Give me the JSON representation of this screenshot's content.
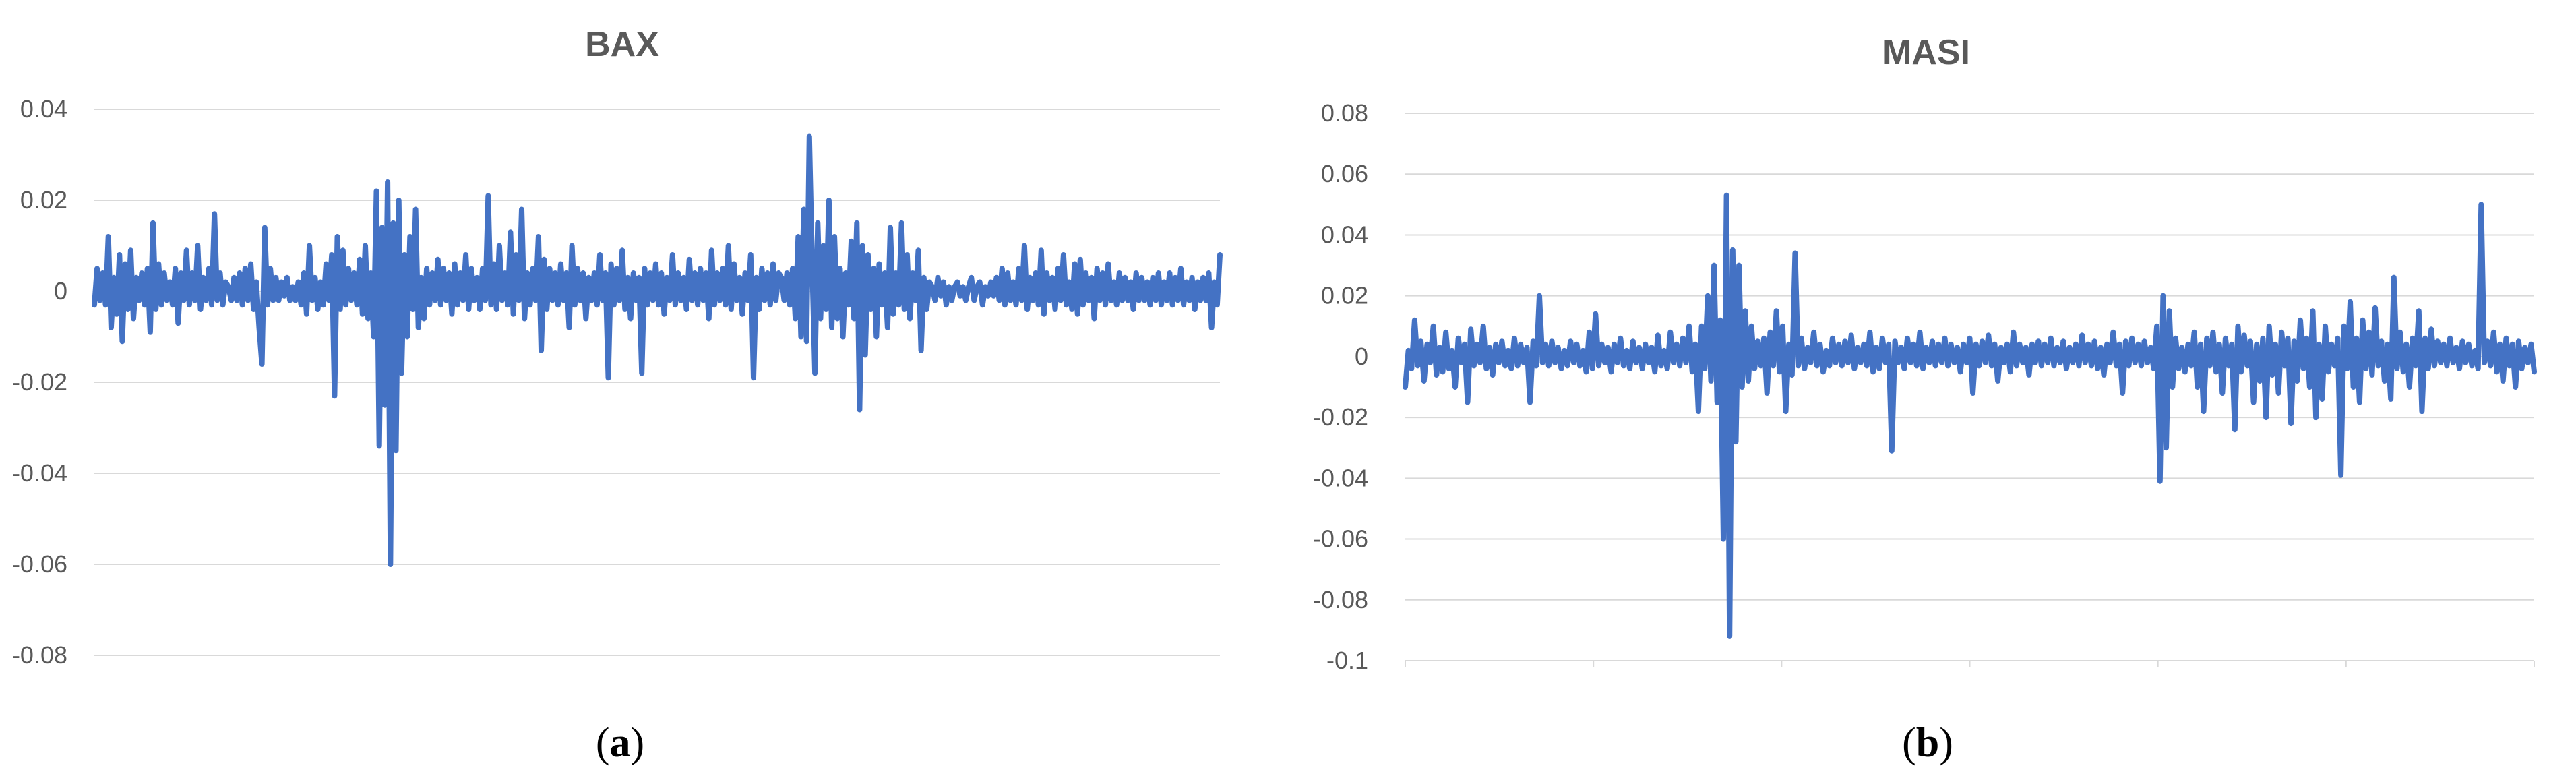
{
  "colors": {
    "series": "#4472c4",
    "grid": "#d9d9d9",
    "text": "#595959"
  },
  "chart_data": [
    {
      "type": "line",
      "title": "BAX",
      "panel_label": "a",
      "xlabel": "",
      "ylabel": "",
      "ylim": [
        -0.08,
        0.04
      ],
      "yticks": [
        0.04,
        0.02,
        0,
        -0.02,
        -0.04,
        -0.06,
        -0.08
      ],
      "ytick_labels": [
        "0.04",
        "0.02",
        "0",
        "-0.02",
        "-0.04",
        "-0.06",
        "-0.08"
      ],
      "grid": true,
      "legend": "none",
      "series": [
        {
          "values": [
            -0.003,
            0.005,
            -0.002,
            0.004,
            -0.003,
            0.012,
            -0.008,
            0.003,
            -0.005,
            0.008,
            -0.011,
            0.006,
            -0.004,
            0.009,
            -0.006,
            0.003,
            -0.002,
            0.004,
            -0.003,
            0.005,
            -0.009,
            0.015,
            -0.004,
            0.006,
            -0.003,
            0.004,
            -0.002,
            0.002,
            -0.003,
            0.005,
            -0.007,
            0.004,
            -0.002,
            0.009,
            -0.003,
            0.004,
            -0.002,
            0.01,
            -0.004,
            0.003,
            -0.002,
            0.005,
            -0.003,
            0.017,
            -0.002,
            0.004,
            -0.003,
            0.002,
            0.001,
            -0.002,
            0.003,
            -0.002,
            0.004,
            -0.003,
            0.005,
            -0.002,
            0.006,
            -0.004,
            0.002,
            -0.008,
            -0.016,
            0.014,
            -0.003,
            0.005,
            -0.002,
            0.003,
            -0.002,
            0.002,
            -0.001,
            0.003,
            -0.002,
            0.001,
            -0.002,
            0.002,
            -0.003,
            0.004,
            -0.005,
            0.01,
            -0.002,
            0.003,
            -0.004,
            0.002,
            -0.003,
            0.006,
            -0.002,
            0.008,
            -0.023,
            0.012,
            -0.004,
            0.009,
            -0.003,
            0.005,
            -0.002,
            0.004,
            -0.003,
            0.007,
            -0.005,
            0.01,
            -0.006,
            0.004,
            -0.01,
            0.022,
            -0.034,
            0.014,
            -0.025,
            0.024,
            -0.06,
            0.015,
            -0.035,
            0.02,
            -0.018,
            0.008,
            -0.01,
            0.012,
            -0.004,
            0.018,
            -0.008,
            0.003,
            -0.006,
            0.005,
            -0.003,
            0.004,
            -0.002,
            0.007,
            -0.003,
            0.005,
            -0.002,
            0.004,
            -0.005,
            0.006,
            -0.003,
            0.004,
            -0.002,
            0.008,
            -0.004,
            0.005,
            -0.002,
            0.003,
            -0.004,
            0.005,
            -0.002,
            0.021,
            -0.003,
            0.006,
            -0.004,
            0.01,
            -0.002,
            0.004,
            -0.003,
            0.013,
            -0.005,
            0.008,
            -0.002,
            0.018,
            -0.006,
            0.004,
            -0.003,
            0.005,
            -0.002,
            0.012,
            -0.013,
            0.007,
            -0.004,
            0.005,
            -0.002,
            0.004,
            -0.003,
            0.006,
            -0.002,
            0.004,
            -0.008,
            0.01,
            -0.003,
            0.005,
            -0.002,
            0.004,
            -0.006,
            0.003,
            -0.002,
            0.004,
            -0.003,
            0.008,
            -0.002,
            0.004,
            -0.019,
            0.006,
            -0.003,
            0.005,
            -0.002,
            0.009,
            -0.004,
            0.003,
            -0.006,
            0.004,
            -0.002,
            0.003,
            -0.018,
            0.005,
            -0.003,
            0.004,
            -0.002,
            0.006,
            -0.003,
            0.004,
            -0.005,
            0.003,
            -0.002,
            0.008,
            -0.003,
            0.004,
            -0.002,
            0.003,
            -0.004,
            0.007,
            -0.002,
            0.004,
            -0.003,
            0.005,
            -0.002,
            0.004,
            -0.006,
            0.009,
            -0.003,
            0.004,
            -0.002,
            0.005,
            -0.003,
            0.01,
            -0.004,
            0.006,
            -0.002,
            0.003,
            -0.005,
            0.004,
            -0.002,
            0.008,
            -0.019,
            0.003,
            -0.004,
            0.005,
            -0.002,
            0.004,
            -0.003,
            0.006,
            -0.002,
            0.004,
            0.003,
            -0.002,
            0.004,
            -0.003,
            0.005,
            -0.006,
            0.012,
            -0.01,
            0.018,
            -0.011,
            0.034,
            0.006,
            -0.018,
            0.015,
            -0.006,
            0.01,
            -0.004,
            0.02,
            -0.008,
            0.012,
            -0.006,
            0.005,
            -0.01,
            0.004,
            -0.003,
            0.011,
            -0.006,
            0.015,
            -0.026,
            0.01,
            -0.014,
            0.008,
            -0.004,
            0.005,
            -0.01,
            0.006,
            -0.003,
            0.004,
            -0.008,
            0.014,
            -0.005,
            0.004,
            -0.003,
            0.015,
            -0.004,
            0.008,
            -0.006,
            0.004,
            -0.002,
            0.009,
            -0.013,
            0.003,
            -0.004,
            0.002,
            0.001,
            -0.002,
            0.003,
            -0.001,
            0.002,
            -0.003,
            0.001,
            -0.002,
            0.001,
            0.002,
            -0.001,
            0.001,
            -0.002,
            0.001,
            0.003,
            -0.002,
            0.001,
            0.002,
            -0.003,
            0.001,
            -0.001,
            0.002,
            -0.001,
            0.003,
            -0.002,
            0.005,
            -0.003,
            0.004,
            -0.002,
            0.002,
            -0.003,
            0.005,
            -0.002,
            0.01,
            -0.004,
            0.003,
            -0.002,
            0.004,
            -0.003,
            0.009,
            -0.005,
            0.004,
            -0.002,
            0.003,
            -0.004,
            0.005,
            -0.002,
            0.008,
            -0.003,
            0.002,
            -0.004,
            0.006,
            -0.005,
            0.007,
            -0.003,
            0.004,
            -0.002,
            0.003,
            -0.006,
            0.005,
            -0.002,
            0.004,
            -0.003,
            0.006,
            -0.002,
            0.002,
            -0.003,
            0.004,
            -0.002,
            0.003,
            -0.002,
            0.002,
            -0.004,
            0.004,
            -0.002,
            0.003,
            -0.002,
            0.002,
            -0.003,
            0.003,
            -0.002,
            0.004,
            -0.003,
            0.002,
            -0.002,
            0.004,
            -0.003,
            0.003,
            -0.002,
            0.005,
            -0.003,
            0.002,
            -0.002,
            0.003,
            -0.004,
            0.002,
            -0.002,
            0.003,
            -0.002,
            0.004,
            -0.008,
            0.002,
            -0.003,
            0.008
          ]
        }
      ]
    },
    {
      "type": "line",
      "title": "MASI",
      "panel_label": "b",
      "xlabel": "",
      "ylabel": "",
      "ylim": [
        -0.1,
        0.08
      ],
      "yticks": [
        0.08,
        0.06,
        0.04,
        0.02,
        0,
        -0.02,
        -0.04,
        -0.06,
        -0.08,
        -0.1
      ],
      "ytick_labels": [
        "0.08",
        "0.06",
        "0.04",
        "0.02",
        "0",
        "-0.02",
        "-0.04",
        "-0.06",
        "-0.08",
        "-0.1"
      ],
      "grid": true,
      "legend": "none",
      "series": [
        {
          "values": [
            -0.01,
            0.002,
            -0.004,
            0.012,
            -0.003,
            0.005,
            -0.008,
            0.004,
            -0.002,
            0.01,
            -0.006,
            0.003,
            -0.005,
            0.008,
            -0.004,
            0.002,
            -0.01,
            0.006,
            -0.002,
            0.004,
            -0.015,
            0.009,
            -0.003,
            0.004,
            -0.002,
            0.01,
            -0.004,
            0.003,
            -0.006,
            0.004,
            -0.002,
            0.005,
            -0.003,
            0.002,
            -0.004,
            0.006,
            -0.003,
            0.004,
            -0.002,
            0.003,
            -0.015,
            0.005,
            -0.003,
            0.02,
            -0.002,
            0.004,
            -0.003,
            0.005,
            -0.002,
            0.003,
            -0.004,
            0.002,
            -0.003,
            0.005,
            -0.002,
            0.004,
            -0.003,
            0.002,
            -0.005,
            0.008,
            -0.004,
            0.014,
            -0.003,
            0.004,
            -0.002,
            0.003,
            -0.005,
            0.004,
            -0.002,
            0.006,
            -0.003,
            0.002,
            -0.004,
            0.005,
            -0.002,
            0.003,
            -0.004,
            0.004,
            -0.002,
            0.003,
            -0.005,
            0.007,
            -0.003,
            0.002,
            -0.004,
            0.008,
            -0.002,
            0.004,
            -0.003,
            0.006,
            -0.002,
            0.01,
            -0.005,
            0.004,
            -0.018,
            0.01,
            -0.004,
            0.02,
            -0.008,
            0.03,
            -0.015,
            0.012,
            -0.06,
            0.053,
            -0.092,
            0.035,
            -0.028,
            0.03,
            -0.01,
            0.015,
            -0.008,
            0.01,
            -0.004,
            0.005,
            -0.003,
            0.006,
            -0.012,
            0.008,
            -0.003,
            0.015,
            -0.005,
            0.01,
            -0.018,
            0.004,
            -0.006,
            0.034,
            -0.003,
            0.006,
            -0.004,
            0.003,
            -0.002,
            0.008,
            -0.003,
            0.004,
            -0.005,
            0.002,
            -0.003,
            0.006,
            -0.002,
            0.004,
            -0.003,
            0.005,
            -0.002,
            0.007,
            -0.004,
            0.003,
            -0.002,
            0.004,
            -0.003,
            0.008,
            -0.005,
            0.003,
            -0.004,
            0.006,
            -0.002,
            0.004,
            -0.031,
            0.005,
            -0.002,
            0.003,
            -0.004,
            0.006,
            -0.002,
            0.004,
            -0.003,
            0.008,
            -0.004,
            0.003,
            -0.002,
            0.005,
            -0.003,
            0.004,
            -0.002,
            0.006,
            -0.003,
            0.004,
            -0.002,
            0.003,
            -0.005,
            0.004,
            -0.002,
            0.006,
            -0.012,
            0.004,
            -0.003,
            0.005,
            -0.002,
            0.007,
            -0.003,
            0.004,
            -0.008,
            0.003,
            -0.002,
            0.004,
            -0.005,
            0.008,
            -0.003,
            0.004,
            -0.002,
            0.003,
            -0.006,
            0.004,
            -0.002,
            0.005,
            -0.003,
            0.004,
            -0.002,
            0.006,
            -0.003,
            0.003,
            -0.002,
            0.005,
            -0.004,
            0.003,
            -0.002,
            0.004,
            -0.003,
            0.007,
            -0.002,
            0.004,
            -0.003,
            0.005,
            -0.004,
            0.003,
            -0.006,
            0.004,
            -0.002,
            0.008,
            -0.003,
            0.004,
            -0.012,
            0.005,
            -0.003,
            0.006,
            -0.002,
            0.004,
            -0.003,
            0.005,
            -0.002,
            0.003,
            -0.004,
            0.01,
            -0.041,
            0.02,
            -0.03,
            0.015,
            -0.01,
            0.006,
            -0.004,
            0.003,
            -0.005,
            0.004,
            -0.003,
            0.008,
            -0.01,
            0.004,
            -0.018,
            0.006,
            -0.003,
            0.008,
            -0.005,
            0.004,
            -0.012,
            0.006,
            -0.003,
            0.004,
            -0.024,
            0.01,
            -0.005,
            0.007,
            -0.003,
            0.005,
            -0.015,
            0.004,
            -0.008,
            0.006,
            -0.02,
            0.01,
            -0.006,
            0.004,
            -0.012,
            0.008,
            -0.003,
            0.006,
            -0.022,
            0.005,
            -0.008,
            0.012,
            -0.004,
            0.006,
            -0.01,
            0.015,
            -0.02,
            0.004,
            -0.014,
            0.01,
            -0.005,
            0.004,
            -0.003,
            0.006,
            -0.039,
            0.01,
            -0.004,
            0.018,
            -0.01,
            0.006,
            -0.015,
            0.012,
            -0.004,
            0.008,
            -0.006,
            0.016,
            -0.003,
            0.005,
            -0.008,
            0.004,
            -0.014,
            0.026,
            -0.004,
            0.008,
            -0.005,
            0.004,
            -0.01,
            0.006,
            -0.003,
            0.015,
            -0.018,
            0.006,
            -0.004,
            0.009,
            -0.003,
            0.005,
            -0.002,
            0.004,
            -0.003,
            0.006,
            -0.002,
            0.003,
            -0.004,
            0.005,
            -0.002,
            0.004,
            -0.003,
            0.002,
            -0.004,
            0.05,
            -0.002,
            0.005,
            -0.003,
            0.008,
            -0.005,
            0.004,
            -0.008,
            0.006,
            -0.003,
            0.004,
            -0.01,
            0.005,
            -0.004,
            0.003,
            -0.002,
            0.004,
            -0.005
          ]
        }
      ]
    }
  ]
}
